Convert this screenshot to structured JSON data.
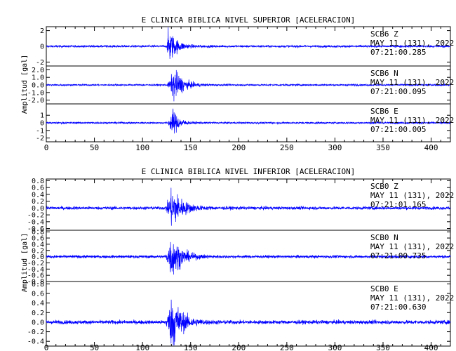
{
  "chart_data": [
    {
      "type": "line",
      "title": "E CLINICA BIBLICA NIVEL SUPERIOR [ACELERACION]",
      "ylabel": "Amplitud [gal]",
      "xlim": [
        0,
        420
      ],
      "x_ticks": [
        "0",
        "50",
        "100",
        "150",
        "200",
        "250",
        "300",
        "350",
        "400"
      ],
      "grid": false,
      "series": [
        {
          "name": "SCB6  Z",
          "color": "#0000ff",
          "annotation": [
            "SCB6  Z",
            "MAY 11 (131), 2022",
            "07:21:00.285"
          ],
          "ylim": [
            -2.5,
            2.5
          ],
          "y_ticks": [
            "2",
            "0",
            "-2"
          ],
          "event_onset": 125,
          "peak_time": 127,
          "peak_amplitude": 2.1,
          "coda_end": 150,
          "noise_level": 0.12
        },
        {
          "name": "SCB6  N",
          "color": "#0000ff",
          "annotation": [
            "SCB6  N",
            "MAY 11 (131), 2022",
            "07:21:00.095"
          ],
          "ylim": [
            -2.5,
            2.5
          ],
          "y_ticks": [
            "2.0",
            "1.0",
            "0.0",
            "-1.0",
            "-2.0"
          ],
          "event_onset": 125,
          "peak_time": 133,
          "peak_amplitude": 1.9,
          "coda_end": 160,
          "noise_level": 0.1
        },
        {
          "name": "SCB6  E",
          "color": "#0000ff",
          "annotation": [
            "SCB6  E",
            "MAY 11 (131), 2022",
            "07:21:00.005"
          ],
          "ylim": [
            -2.5,
            2.5
          ],
          "y_ticks": [
            "1",
            "0",
            "-1",
            "-2"
          ],
          "event_onset": 125,
          "peak_time": 132,
          "peak_amplitude": 1.5,
          "coda_end": 150,
          "noise_level": 0.1
        }
      ]
    },
    {
      "type": "line",
      "title": "E CLINICA BIBLICA NIVEL INFERIOR [ACELERACION]",
      "ylabel": "Amplitud [gal]",
      "xlim": [
        0,
        420
      ],
      "x_ticks": [
        "0",
        "50",
        "100",
        "150",
        "200",
        "250",
        "300",
        "350",
        "400"
      ],
      "grid": false,
      "series": [
        {
          "name": "SCB0  Z",
          "color": "#0000ff",
          "annotation": [
            "SCB0  Z",
            "MAY 11 (131), 2022",
            "07:21:01.165"
          ],
          "ylim": [
            -0.65,
            0.85
          ],
          "y_ticks": [
            "0.8",
            "0.6",
            "0.4",
            "0.2",
            "0.0",
            "-0.2",
            "-0.4",
            "-0.6"
          ],
          "event_onset": 123,
          "peak_time": 131,
          "peak_amplitude": 0.55,
          "coda_end": 160,
          "noise_level": 0.04
        },
        {
          "name": "SCB0  N",
          "color": "#0000ff",
          "annotation": [
            "SCB0  N",
            "MAY 11 (131), 2022",
            "07:21:00.735"
          ],
          "ylim": [
            -0.8,
            0.85
          ],
          "y_ticks": [
            "0.8",
            "0.6",
            "0.4",
            "0.2",
            "0.0",
            "-0.2",
            "-0.4",
            "-0.6",
            "-0.8"
          ],
          "event_onset": 123,
          "peak_time": 130,
          "peak_amplitude": 0.6,
          "coda_end": 160,
          "noise_level": 0.04
        },
        {
          "name": "SCB0  E",
          "color": "#0000ff",
          "annotation": [
            "SCB0  E",
            "MAY 11 (131), 2022",
            "07:21:00.630"
          ],
          "ylim": [
            -0.5,
            0.85
          ],
          "y_ticks": [
            "0.8",
            "0.6",
            "0.4",
            "0.2",
            "0.0",
            "-0.2",
            "-0.4"
          ],
          "event_onset": 123,
          "peak_time": 131,
          "peak_amplitude": 0.5,
          "coda_end": 160,
          "noise_level": 0.035
        }
      ]
    }
  ]
}
